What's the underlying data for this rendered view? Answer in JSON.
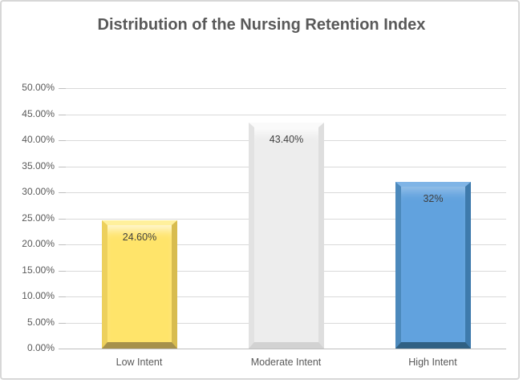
{
  "chart": {
    "title": "Distribution of the Nursing Retention Index"
  },
  "chart_data": {
    "type": "bar",
    "title": "Distribution of the Nursing Retention Index",
    "categories": [
      "Low Intent",
      "Moderate Intent",
      "High Intent"
    ],
    "values": [
      24.6,
      43.4,
      32
    ],
    "data_labels": [
      "24.60%",
      "43.40%",
      "32%"
    ],
    "xlabel": "",
    "ylabel": "",
    "ylim": [
      0,
      50
    ],
    "ytick_step": 5,
    "ytick_labels": [
      "50.00%",
      "45.00%",
      "40.00%",
      "35.00%",
      "30.00%",
      "25.00%",
      "20.00%",
      "15.00%",
      "10.00%",
      "5.00%",
      "0.00%"
    ],
    "grid": true,
    "legend": false,
    "bar_colors": [
      "#FFE46A",
      "#EDEDED",
      "#61A2DE"
    ],
    "title_color": "#595959",
    "axis_label_color": "#595959",
    "data_label_color": "#404040",
    "gridline_color": "#D9D9D9"
  }
}
